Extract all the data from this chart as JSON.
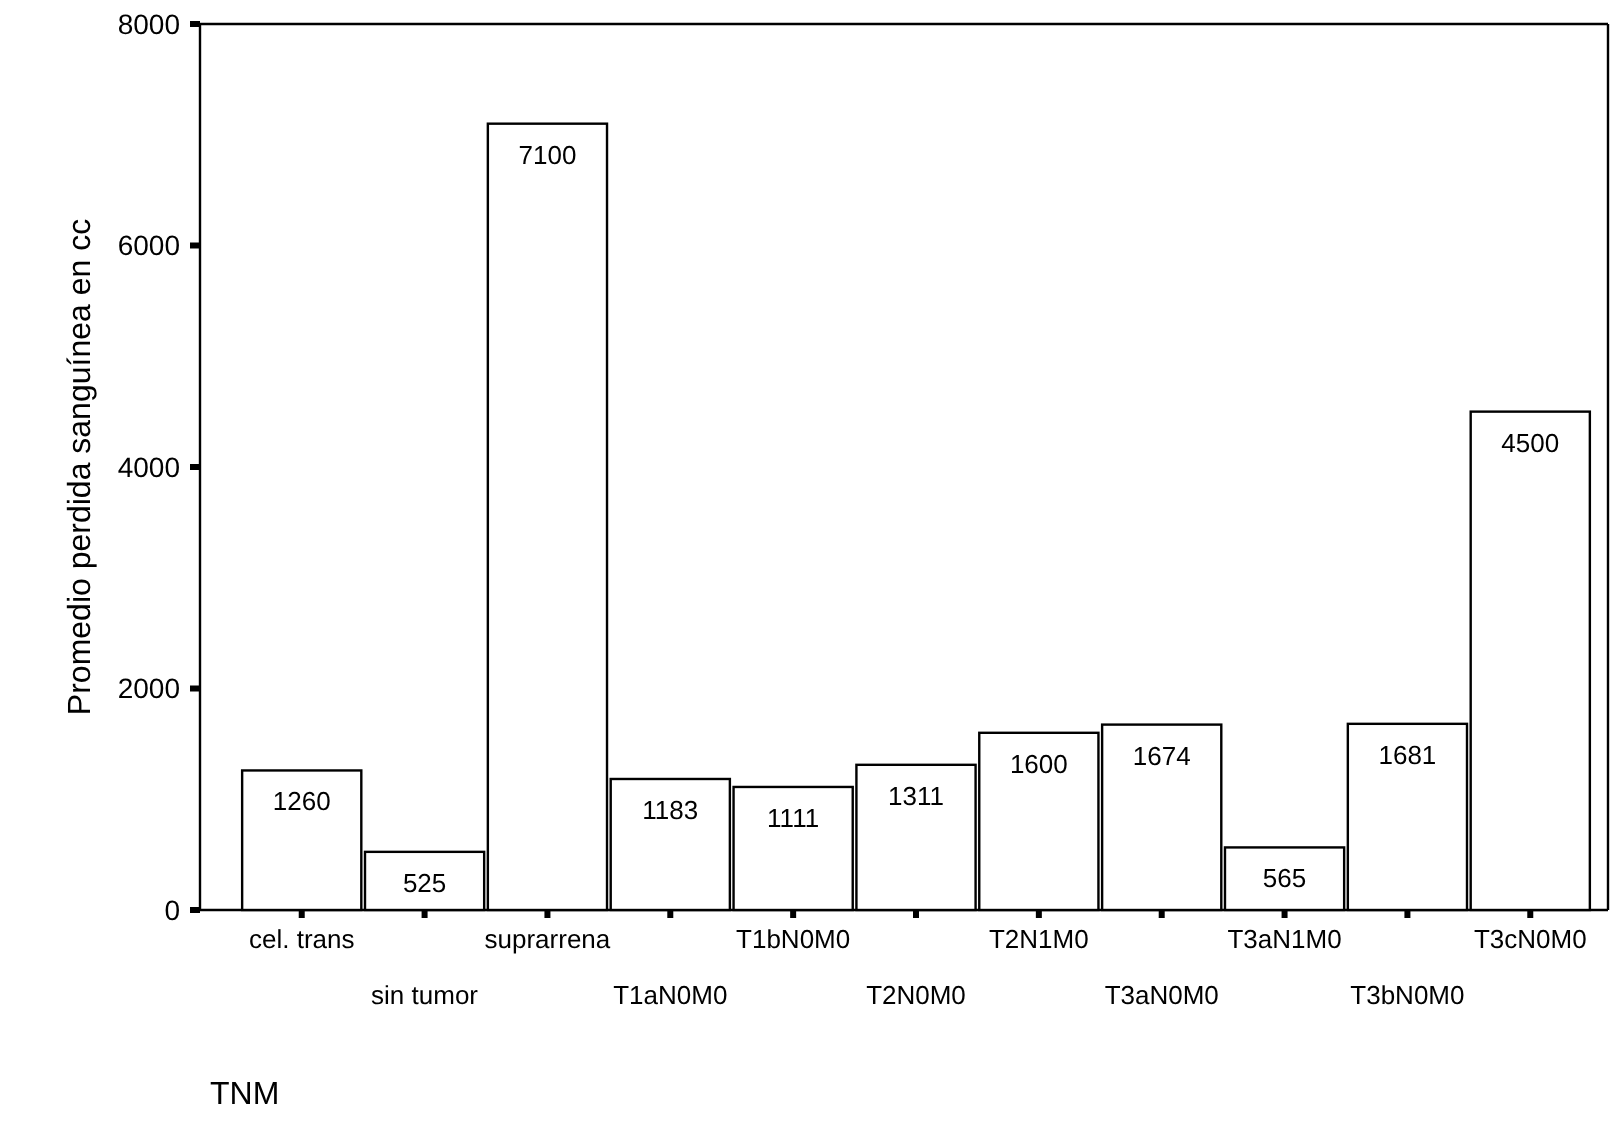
{
  "chart_data": {
    "type": "bar",
    "xlabel": "TNM",
    "ylabel": "Promedio perdida sanguínea en cc",
    "categories": [
      "cel. trans",
      "sin tumor",
      "suprarrena",
      "T1aN0M0",
      "T1bN0M0",
      "T2N0M0",
      "T2N1M0",
      "T3aN0M0",
      "T3aN1M0",
      "T3bN0M0",
      "T3cN0M0"
    ],
    "values": [
      1260,
      525,
      7100,
      1183,
      1111,
      1311,
      1600,
      1674,
      565,
      1681,
      4500
    ],
    "color": "#ffffff",
    "ylim": [
      0,
      8000
    ],
    "yticks": [
      0,
      2000,
      4000,
      6000,
      8000
    ],
    "data_labels": true,
    "grid": false
  }
}
